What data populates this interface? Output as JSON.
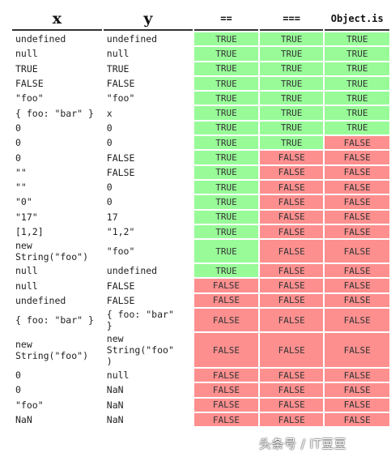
{
  "headers": {
    "x": "x",
    "y": "y",
    "eq": "==",
    "seq": "===",
    "is": "Object.is"
  },
  "colors": {
    "true_bg": "#98fb98",
    "false_bg": "#fe8f8f"
  },
  "rows": [
    {
      "x": "undefined",
      "y": "undefined",
      "eq": "TRUE",
      "seq": "TRUE",
      "is": "TRUE"
    },
    {
      "x": "null",
      "y": "null",
      "eq": "TRUE",
      "seq": "TRUE",
      "is": "TRUE"
    },
    {
      "x": "TRUE",
      "y": "TRUE",
      "eq": "TRUE",
      "seq": "TRUE",
      "is": "TRUE"
    },
    {
      "x": "FALSE",
      "y": "FALSE",
      "eq": "TRUE",
      "seq": "TRUE",
      "is": "TRUE"
    },
    {
      "x": "\"foo\"",
      "y": "\"foo\"",
      "eq": "TRUE",
      "seq": "TRUE",
      "is": "TRUE"
    },
    {
      "x": "{ foo: \"bar\" }",
      "y": "x",
      "eq": "TRUE",
      "seq": "TRUE",
      "is": "TRUE"
    },
    {
      "x": "0",
      "y": "0",
      "eq": "TRUE",
      "seq": "TRUE",
      "is": "TRUE"
    },
    {
      "x": "0",
      "y": "0",
      "eq": "TRUE",
      "seq": "TRUE",
      "is": "FALSE"
    },
    {
      "x": "0",
      "y": "FALSE",
      "eq": "TRUE",
      "seq": "FALSE",
      "is": "FALSE"
    },
    {
      "x": "\"\"",
      "y": "FALSE",
      "eq": "TRUE",
      "seq": "FALSE",
      "is": "FALSE"
    },
    {
      "x": "\"\"",
      "y": "0",
      "eq": "TRUE",
      "seq": "FALSE",
      "is": "FALSE"
    },
    {
      "x": "\"0\"",
      "y": "0",
      "eq": "TRUE",
      "seq": "FALSE",
      "is": "FALSE"
    },
    {
      "x": "\"17\"",
      "y": "17",
      "eq": "TRUE",
      "seq": "FALSE",
      "is": "FALSE"
    },
    {
      "x": "[1,2]",
      "y": "\"1,2\"",
      "eq": "TRUE",
      "seq": "FALSE",
      "is": "FALSE"
    },
    {
      "x": "new\nString(\"foo\")",
      "y": "\"foo\"",
      "eq": "TRUE",
      "seq": "FALSE",
      "is": "FALSE"
    },
    {
      "x": "null",
      "y": "undefined",
      "eq": "TRUE",
      "seq": "FALSE",
      "is": "FALSE"
    },
    {
      "x": "null",
      "y": "FALSE",
      "eq": "FALSE",
      "seq": "FALSE",
      "is": "FALSE"
    },
    {
      "x": "undefined",
      "y": "FALSE",
      "eq": "FALSE",
      "seq": "FALSE",
      "is": "FALSE"
    },
    {
      "x": "{ foo: \"bar\" }",
      "y": "{ foo: \"bar\"\n}",
      "eq": "FALSE",
      "seq": "FALSE",
      "is": "FALSE"
    },
    {
      "x": "new\nString(\"foo\")",
      "y": "new\nString(\"foo\"\n)",
      "eq": "FALSE",
      "seq": "FALSE",
      "is": "FALSE"
    },
    {
      "x": "0",
      "y": "null",
      "eq": "FALSE",
      "seq": "FALSE",
      "is": "FALSE"
    },
    {
      "x": "0",
      "y": "NaN",
      "eq": "FALSE",
      "seq": "FALSE",
      "is": "FALSE"
    },
    {
      "x": "\"foo\"",
      "y": "NaN",
      "eq": "FALSE",
      "seq": "FALSE",
      "is": "FALSE"
    },
    {
      "x": "NaN",
      "y": "NaN",
      "eq": "FALSE",
      "seq": "FALSE",
      "is": "FALSE"
    }
  ],
  "watermark": "头条号 / IT豆豆"
}
